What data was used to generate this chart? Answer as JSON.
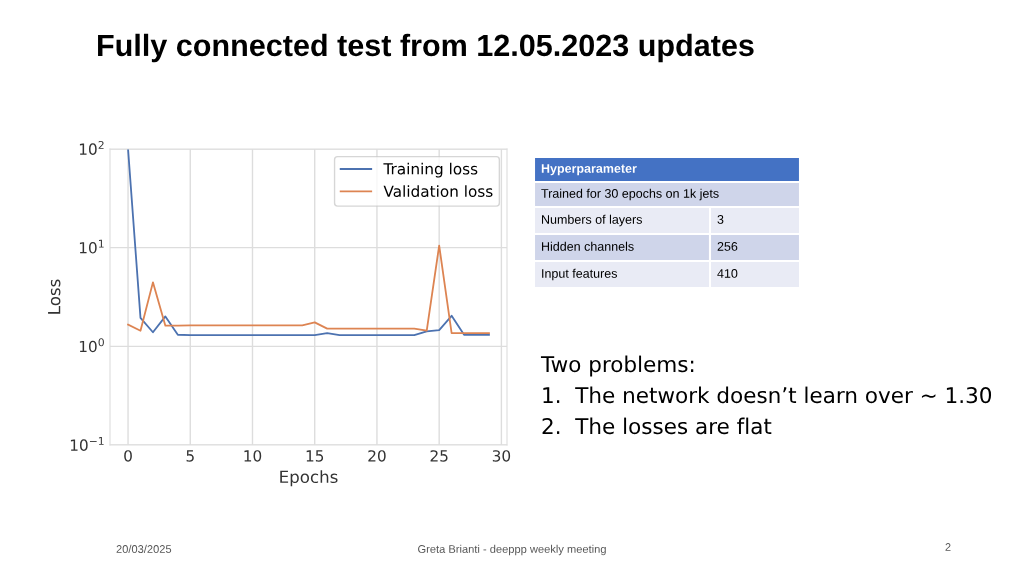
{
  "chart_data": {
    "type": "line",
    "title": "Fully connected test from 12.05.2023 updates",
    "xlabel": "Epochs",
    "ylabel": "Loss",
    "x": [
      0,
      1,
      2,
      3,
      4,
      5,
      6,
      7,
      8,
      9,
      10,
      11,
      12,
      13,
      14,
      15,
      16,
      17,
      18,
      19,
      20,
      21,
      22,
      23,
      24,
      25,
      26,
      27,
      28,
      29
    ],
    "series": [
      {
        "name": "Training loss",
        "color": "#4c72b0",
        "values": [
          100,
          1.94,
          1.39,
          2.01,
          1.31,
          1.3,
          1.3,
          1.3,
          1.3,
          1.3,
          1.3,
          1.3,
          1.3,
          1.3,
          1.3,
          1.3,
          1.36,
          1.3,
          1.3,
          1.3,
          1.3,
          1.3,
          1.3,
          1.3,
          1.42,
          1.46,
          2.04,
          1.31,
          1.31,
          1.31
        ]
      },
      {
        "name": "Validation loss",
        "color": "#dd8452",
        "values": [
          1.66,
          1.44,
          4.45,
          1.62,
          1.62,
          1.63,
          1.63,
          1.63,
          1.63,
          1.63,
          1.63,
          1.63,
          1.63,
          1.63,
          1.63,
          1.75,
          1.51,
          1.51,
          1.51,
          1.51,
          1.51,
          1.51,
          1.51,
          1.51,
          1.44,
          10.5,
          1.36,
          1.36,
          1.36,
          1.36
        ]
      }
    ],
    "log": "y",
    "xlim": [
      -1.45,
      30.45
    ],
    "ylim": [
      0.1,
      100
    ],
    "xticks": [
      0,
      5,
      10,
      15,
      20,
      25,
      30
    ],
    "yticks": [
      {
        "value": 0.1,
        "label": "10$^{−1}$"
      },
      {
        "value": 1,
        "label": "10$^{0}$"
      },
      {
        "value": 10,
        "label": "10$^{1}$"
      },
      {
        "value": 100,
        "label": "10$^{2}$"
      }
    ],
    "grid": true,
    "legend": "top right",
    "marker": "none",
    "line_style": "solid",
    "annotations": [
      "Hyperparameter",
      "Trained for 30 epochs on 1k jets",
      "Numbers of layers",
      "3",
      "Hidden channels",
      "256",
      "Input features",
      "410",
      "Two problems:",
      "1.  The network doesn’t learn over ∼ 1.30",
      "2.  The losses are flat",
      "20/03/2025",
      "Greta Brianti - deeppp weekly meeting",
      "2"
    ]
  }
}
